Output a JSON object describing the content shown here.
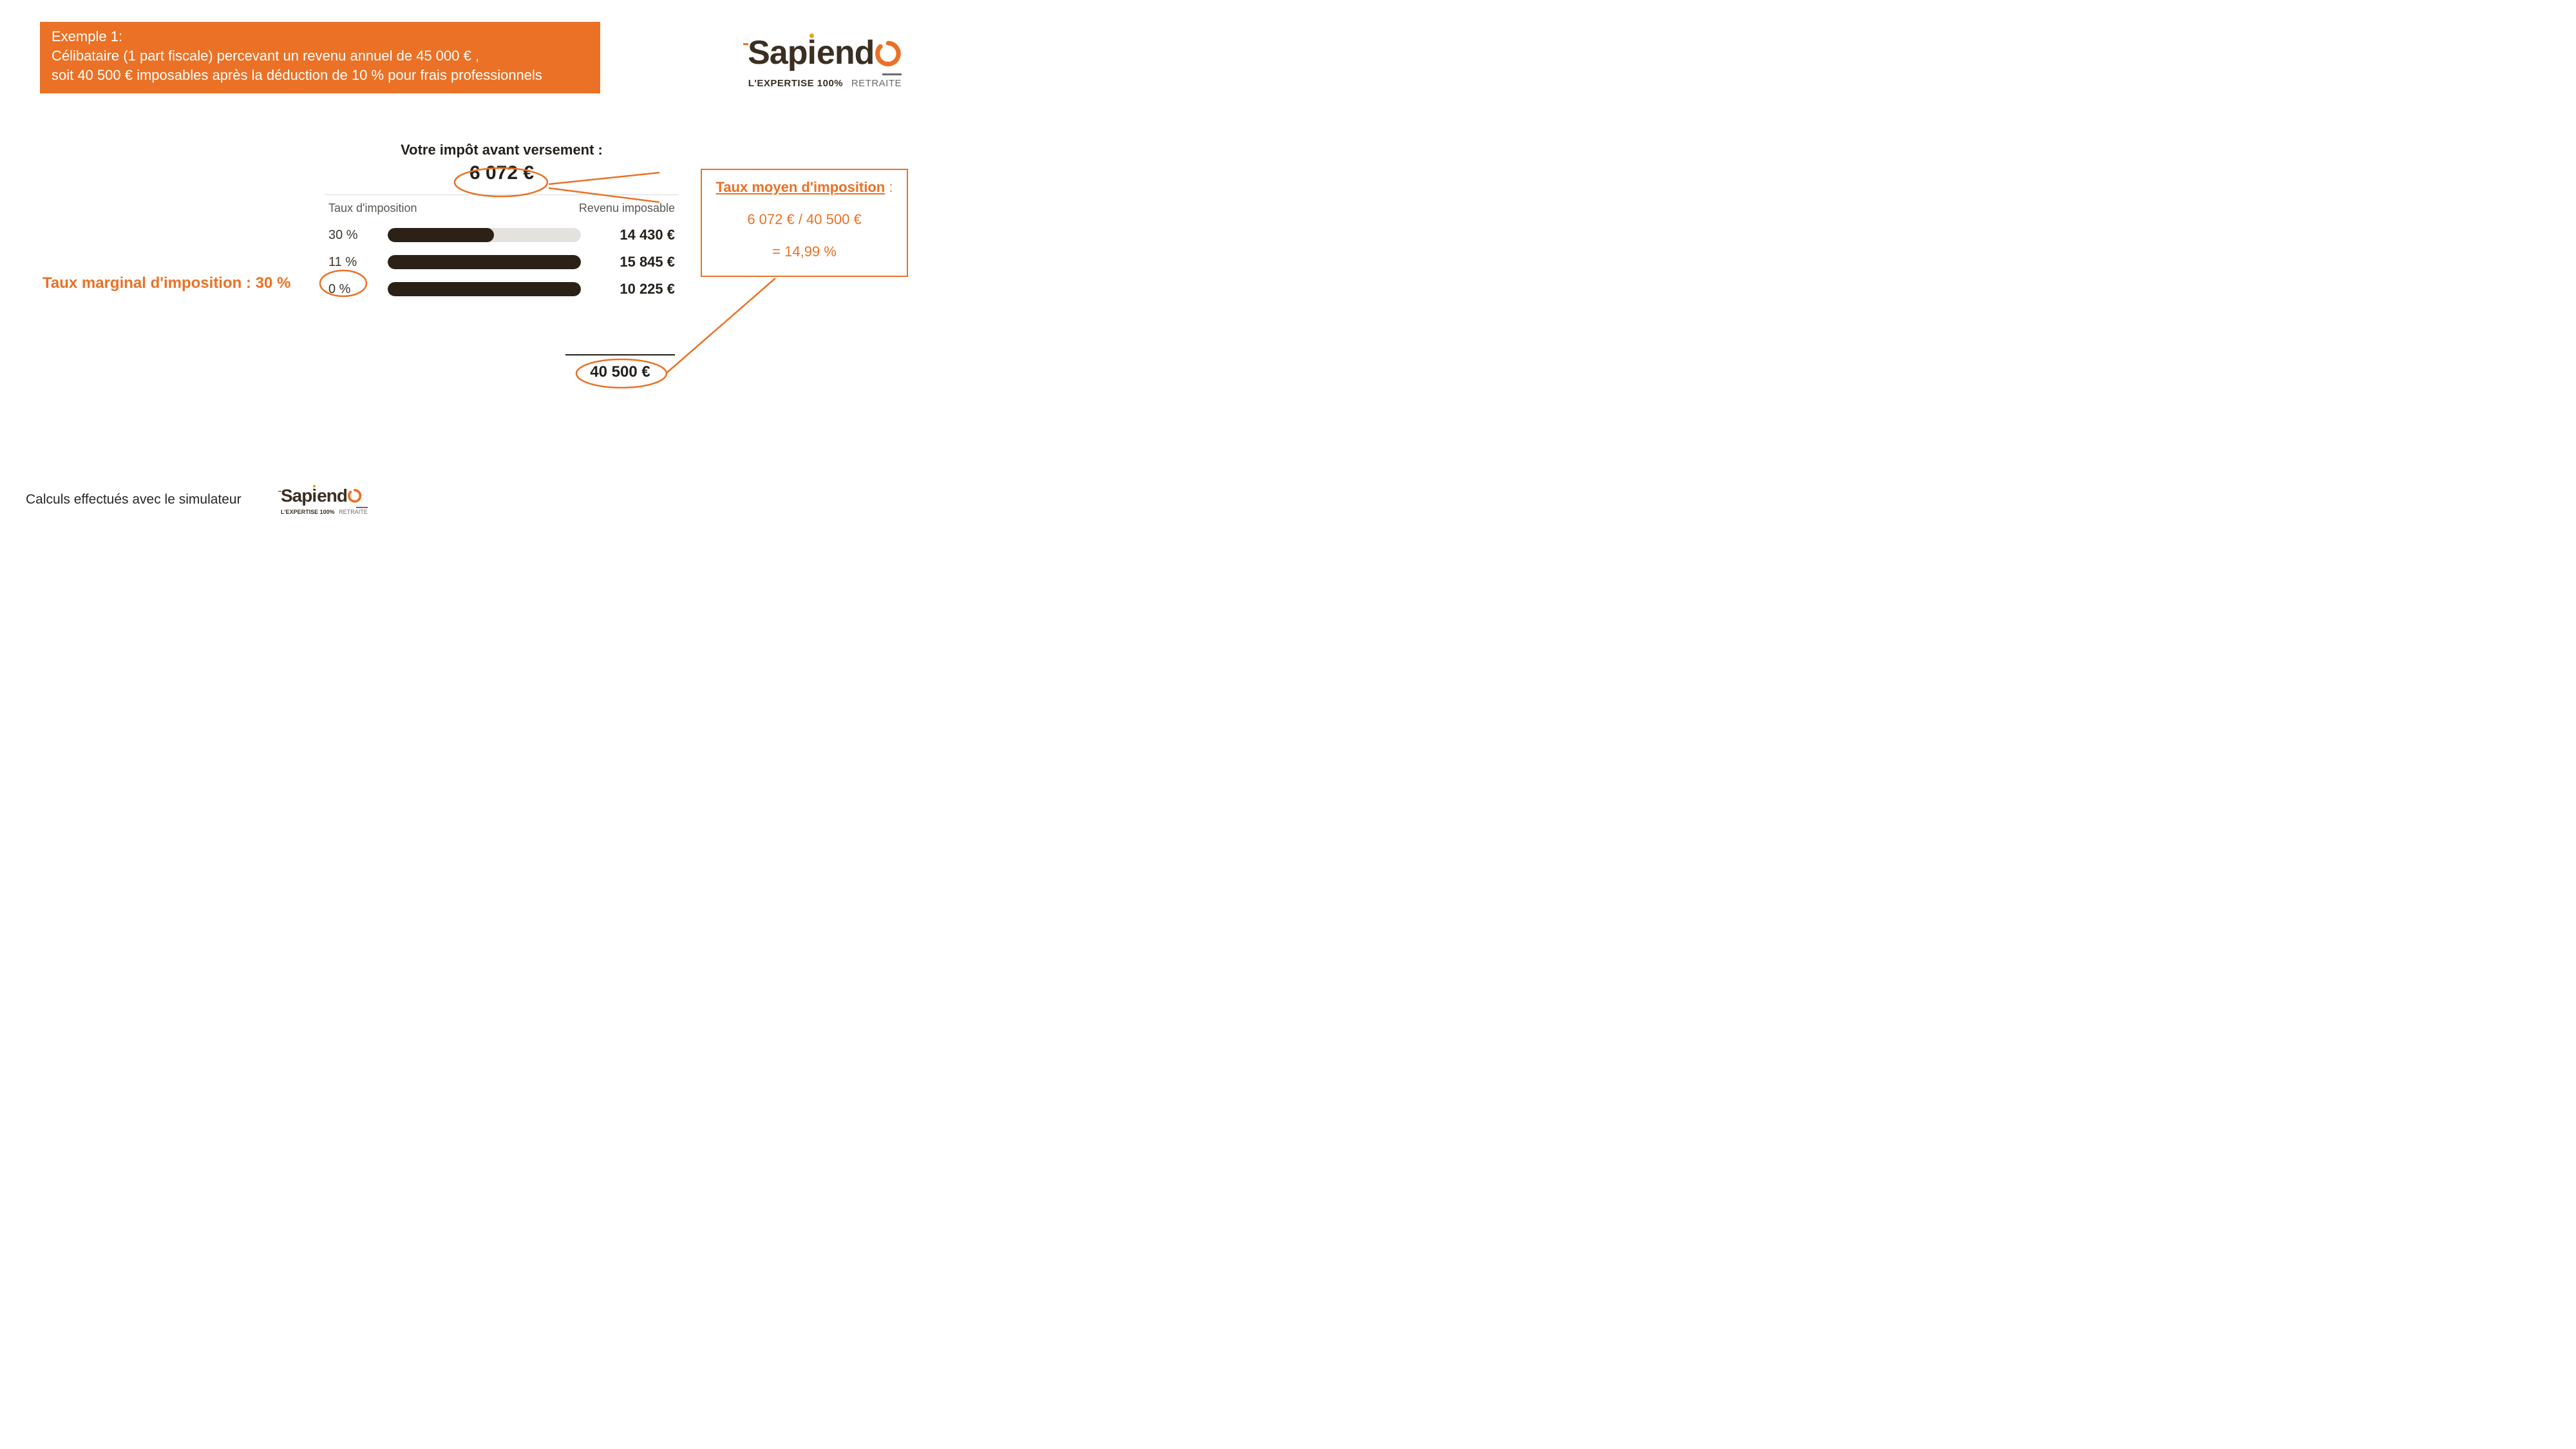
{
  "colors": {
    "orange": "#ea7125",
    "brown": "#3a2f22",
    "box_bg": "#ea7125",
    "box_text": "#ffffff",
    "bar_fill": "#2b2117",
    "bar_track": "#e4e2df",
    "text_dark": "#231f1a"
  },
  "header": {
    "title": "Exemple 1:",
    "line1": "Célibataire (1 part fiscale) percevant un revenu annuel de 45 000 € ,",
    "line2": "soit 40 500 € imposables après la déduction de 10 % pour frais professionnels"
  },
  "logo": {
    "text_dark": "Sapiend",
    "ring_color": "#ea7125",
    "i_dot_color": "#e4a11b",
    "tagline_bold": "L'EXPERTISE 100%",
    "tagline_grey": "RETRAITE"
  },
  "chart": {
    "title": "Votre impôt avant versement :",
    "value": "6 072 €",
    "head_left": "Taux d'imposition",
    "head_right": "Revenu imposable",
    "rows": [
      {
        "rate": "30 %",
        "amount": "14 430 €",
        "fill_pct": 55
      },
      {
        "rate": "11 %",
        "amount": "15 845 €",
        "fill_pct": 100
      },
      {
        "rate": "0 %",
        "amount": "10 225 €",
        "fill_pct": 100
      }
    ],
    "sum": "40 500 €"
  },
  "marginal_label": "Taux marginal d'imposition : 30 %",
  "avgbox": {
    "title": "Taux moyen d'imposition",
    "calc": "6 072 € / 40 500 €",
    "result": "= 14,99 %"
  },
  "footer": "Calculs effectués avec le simulateur"
}
